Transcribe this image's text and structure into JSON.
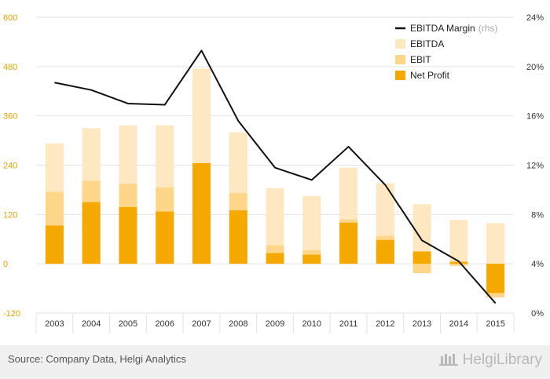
{
  "source": "Source: Company Data, Helgi Analytics",
  "brand": "HelgiLibrary",
  "colors": {
    "ebitda": "#fde8c1",
    "ebit": "#fdd68a",
    "net_profit": "#f5a800",
    "margin_line": "#111111",
    "left_axis": "#e0a400",
    "grid": "#e3e3e3"
  },
  "chart_data": {
    "type": "bar",
    "categories": [
      "2003",
      "2004",
      "2005",
      "2006",
      "2007",
      "2008",
      "2009",
      "2010",
      "2011",
      "2012",
      "2013",
      "2014",
      "2015"
    ],
    "series": [
      {
        "name": "EBITDA",
        "type": "bar",
        "axis": "left",
        "values": [
          293,
          330,
          337,
          337,
          475,
          320,
          184,
          165,
          234,
          196,
          145,
          107,
          99
        ]
      },
      {
        "name": "EBIT",
        "type": "bar",
        "axis": "left",
        "values": [
          175,
          202,
          195,
          186,
          230,
          172,
          45,
          33,
          108,
          68,
          -23,
          -5,
          -82
        ]
      },
      {
        "name": "Net Profit",
        "type": "bar",
        "axis": "left",
        "values": [
          93,
          150,
          138,
          127,
          245,
          130,
          26,
          22,
          100,
          58,
          30,
          5,
          -71
        ]
      },
      {
        "name": "EBITDA Margin",
        "name_suffix": "(rhs)",
        "type": "line",
        "axis": "right",
        "values": [
          18.7,
          18.1,
          17.0,
          16.9,
          21.3,
          15.6,
          11.8,
          10.8,
          13.5,
          10.4,
          5.9,
          4.2,
          0.8
        ]
      }
    ],
    "y_left": {
      "ticks": [
        "600",
        "480",
        "360",
        "240",
        "120",
        "0",
        "-120"
      ],
      "min": -120,
      "max": 600
    },
    "y_right": {
      "ticks": [
        "24%",
        "20%",
        "16%",
        "12%",
        "8%",
        "4%",
        "0%"
      ],
      "min": 0,
      "max": 24
    },
    "legend": {
      "position": "top-right",
      "items": [
        {
          "label": "EBITDA Margin",
          "suffix": "(rhs)",
          "kind": "line",
          "color": "#111111"
        },
        {
          "label": "EBITDA",
          "suffix": "",
          "kind": "box",
          "color": "#fde8c1"
        },
        {
          "label": "EBIT",
          "suffix": "",
          "kind": "box",
          "color": "#fdd68a"
        },
        {
          "label": "Net Profit",
          "suffix": "",
          "kind": "box",
          "color": "#f5a800"
        }
      ]
    },
    "grid": true
  }
}
